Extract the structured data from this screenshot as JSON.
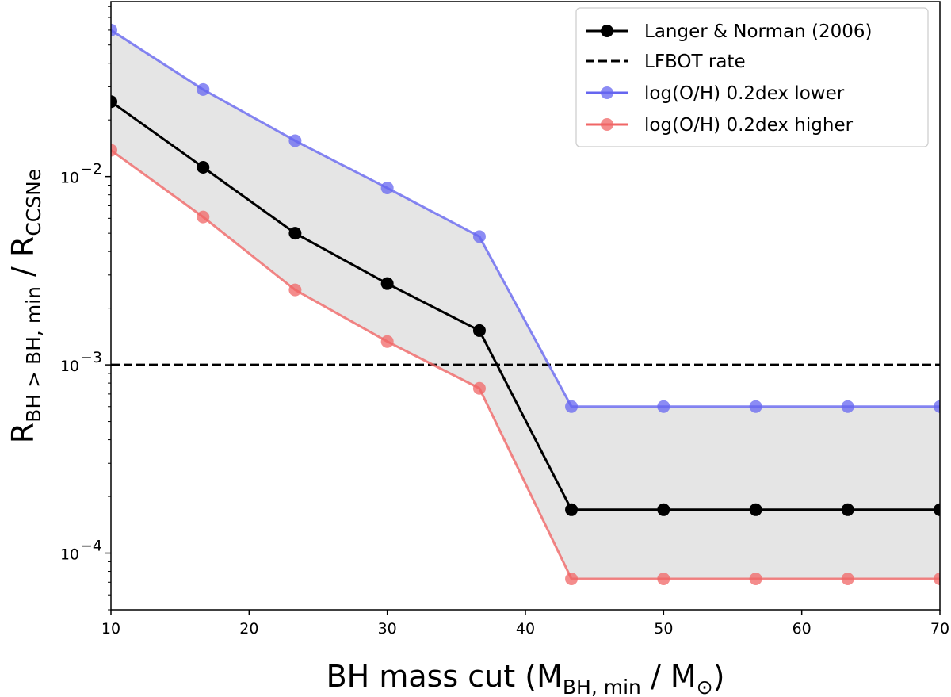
{
  "chart_data": {
    "type": "line",
    "x": [
      10,
      16.67,
      23.33,
      30,
      36.67,
      43.33,
      50,
      56.67,
      63.33,
      70
    ],
    "xlim": [
      10,
      70
    ],
    "ylim": [
      5e-05,
      0.085
    ],
    "yscale": "log",
    "x_ticks": [
      10,
      20,
      30,
      40,
      50,
      60,
      70
    ],
    "x_tick_labels": [
      "10",
      "20",
      "30",
      "40",
      "50",
      "60",
      "70"
    ],
    "y_ticks": [
      0.0001,
      0.001,
      0.01
    ],
    "y_tick_mantissa": "10",
    "y_tick_exponents": [
      "−4",
      "−3",
      "−2"
    ],
    "xlabel": {
      "pre": "BH mass cut (M",
      "sub": "BH, min",
      "mid": " / M",
      "sub2": "⊙",
      "post": ")"
    },
    "ylabel": {
      "r1": "R",
      "sub1": "BH > BH, min",
      "mid": " / R",
      "sub2": "CCSNe"
    },
    "hline": {
      "y": 0.001,
      "name": "LFBOT rate",
      "color": "#000000"
    },
    "band": {
      "color": "#e5e5e5"
    },
    "series": [
      {
        "name": "Langer & Norman (2006)",
        "color": "#000000",
        "values": [
          0.025,
          0.0112,
          0.005,
          0.0027,
          0.00152,
          0.00017,
          0.00017,
          0.00017,
          0.00017,
          0.00017
        ]
      },
      {
        "name": "log(O/H) 0.2dex lower",
        "color": "#6666f0",
        "values": [
          0.06,
          0.029,
          0.0155,
          0.0087,
          0.0048,
          0.0006,
          0.0006,
          0.0006,
          0.0006,
          0.0006
        ]
      },
      {
        "name": "log(O/H) 0.2dex higher",
        "color": "#f06666",
        "values": [
          0.0138,
          0.0061,
          0.0025,
          0.00133,
          0.00075,
          7.3e-05,
          7.3e-05,
          7.3e-05,
          7.3e-05,
          7.3e-05
        ]
      }
    ],
    "legend": {
      "position": "top-right",
      "entries": [
        "Langer & Norman (2006)",
        "LFBOT rate",
        "log(O/H) 0.2dex lower",
        "log(O/H) 0.2dex higher"
      ]
    }
  }
}
